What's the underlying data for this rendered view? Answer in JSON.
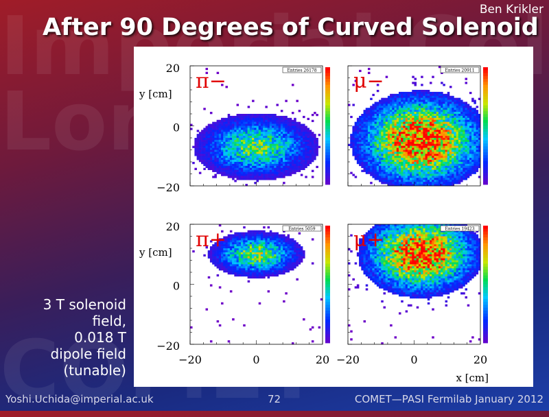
{
  "slide": {
    "author": "Ben Krikler",
    "title": "After 90 Degrees of Curved Solenoid",
    "watermark_lines": [
      "Imperial College",
      "London",
      "COMET"
    ],
    "side_note_lines": [
      "3 T solenoid",
      "field,",
      "0.018 T",
      "dipole field",
      "(tunable)"
    ],
    "footer": {
      "left": "Yoshi.Uchida@imperial.ac.uk",
      "center": "72",
      "right": "COMET—PASI Fermilab January 2012"
    }
  },
  "plots": {
    "y_label": "y [cm]",
    "x_label": "x [cm]",
    "y_ticks": [
      "20",
      "0",
      "−20"
    ],
    "x_ticks_left": [
      "−20",
      "0",
      "20"
    ],
    "x_ticks_right": [
      "−20",
      "0",
      "20"
    ],
    "axis_range": [
      -20,
      20
    ],
    "panels": [
      {
        "particle": "π−",
        "stats": "Entries  26178",
        "center": [
          0,
          -7
        ],
        "spread": [
          17,
          10
        ],
        "density": 0.55,
        "peak_color": "#00c040"
      },
      {
        "particle": "μ−",
        "stats": "Entries  20911",
        "center": [
          2,
          -5
        ],
        "spread": [
          19,
          15
        ],
        "density": 0.95,
        "peak_color": "#ff4000"
      },
      {
        "particle": "π+",
        "stats": "Entries  5059",
        "center": [
          0,
          10
        ],
        "spread": [
          13,
          7
        ],
        "density": 0.6,
        "peak_color": "#40d040"
      },
      {
        "particle": "μ+",
        "stats": "Entries  19423",
        "center": [
          2,
          10
        ],
        "spread": [
          17,
          13
        ],
        "density": 0.95,
        "peak_color": "#ffa000"
      }
    ]
  }
}
